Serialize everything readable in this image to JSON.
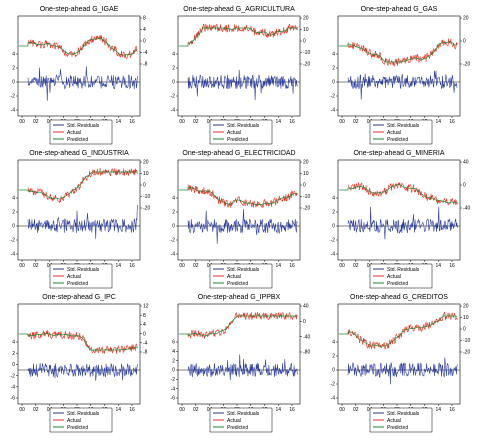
{
  "colors": {
    "residual": "#2a3a9a",
    "actual": "#e03020",
    "predicted": "#1e8a3a",
    "zero": "#000000"
  },
  "legend": {
    "residual": "Std. Residuals",
    "actual": "Actual",
    "predicted": "Predicted"
  },
  "xticks": [
    "00",
    "02",
    "04",
    "06",
    "08",
    "10",
    "12",
    "14",
    "16"
  ],
  "chart_data": [
    {
      "type": "line",
      "title": "One-step-ahead G_IGAE",
      "left_ticks": [
        "4",
        "2",
        "0",
        "-2",
        "-4"
      ],
      "right_ticks": [
        "8",
        "4",
        "0",
        "-4",
        "-8"
      ],
      "series": [
        {
          "name": "Std. Residuals"
        },
        {
          "name": "Actual"
        },
        {
          "name": "Predicted"
        }
      ]
    },
    {
      "type": "line",
      "title": "One-step-ahead G_AGRICULTURA",
      "left_ticks": [
        "4",
        "2",
        "0",
        "-2",
        "-4"
      ],
      "right_ticks": [
        "20",
        "10",
        "0",
        "-10",
        "-20"
      ],
      "series": [
        {
          "name": "Std. Residuals"
        },
        {
          "name": "Actual"
        },
        {
          "name": "Predicted"
        }
      ]
    },
    {
      "type": "line",
      "title": "One-step-ahead G_GAS",
      "left_ticks": [
        "4",
        "2",
        "0",
        "-2",
        "-4"
      ],
      "right_ticks": [
        "20",
        "0",
        "-20"
      ],
      "series": [
        {
          "name": "Std. Residuals"
        },
        {
          "name": "Actual"
        },
        {
          "name": "Predicted"
        }
      ]
    },
    {
      "type": "line",
      "title": "One-step-ahead G_INDUSTRIA",
      "left_ticks": [
        "4",
        "2",
        "0",
        "-2",
        "-4"
      ],
      "right_ticks": [
        "20",
        "10",
        "0",
        "-10",
        "-20"
      ],
      "series": [
        {
          "name": "Std. Residuals"
        },
        {
          "name": "Actual"
        },
        {
          "name": "Predicted"
        }
      ]
    },
    {
      "type": "line",
      "title": "One-step-ahead G_ELECTRICIDAD",
      "left_ticks": [
        "4",
        "2",
        "0",
        "-2",
        "-4"
      ],
      "right_ticks": [
        "20",
        "10",
        "0",
        "-10",
        "-20"
      ],
      "series": [
        {
          "name": "Std. Residuals"
        },
        {
          "name": "Actual"
        },
        {
          "name": "Predicted"
        }
      ]
    },
    {
      "type": "line",
      "title": "One-step-ahead G_MINERIA",
      "left_ticks": [
        "4",
        "2",
        "0",
        "-2",
        "-4"
      ],
      "right_ticks": [
        "40",
        "0",
        "-40"
      ],
      "series": [
        {
          "name": "Std. Residuals"
        },
        {
          "name": "Actual"
        },
        {
          "name": "Predicted"
        }
      ]
    },
    {
      "type": "line",
      "title": "One-step-ahead G_IPC",
      "left_ticks": [
        "4",
        "2",
        "0",
        "-2",
        "-4",
        "-6"
      ],
      "right_ticks": [
        "12",
        "8",
        "4",
        "0",
        "-4",
        "-8"
      ],
      "series": [
        {
          "name": "Std. Residuals"
        },
        {
          "name": "Actual"
        },
        {
          "name": "Predicted"
        }
      ]
    },
    {
      "type": "line",
      "title": "One-step-ahead G_IPPBX",
      "left_ticks": [
        "6",
        "4",
        "2",
        "0",
        "-2",
        "-4",
        "-6"
      ],
      "right_ticks": [
        "40",
        "0",
        "-40",
        "-80"
      ],
      "series": [
        {
          "name": "Std. Residuals"
        },
        {
          "name": "Actual"
        },
        {
          "name": "Predicted"
        }
      ]
    },
    {
      "type": "line",
      "title": "One-step-ahead G_CREDITOS",
      "left_ticks": [
        "4",
        "2",
        "0",
        "-2",
        "-4"
      ],
      "right_ticks": [
        "20",
        "10",
        "0",
        "-10",
        "-20"
      ],
      "series": [
        {
          "name": "Std. Residuals"
        },
        {
          "name": "Actual"
        },
        {
          "name": "Predicted"
        }
      ]
    }
  ]
}
